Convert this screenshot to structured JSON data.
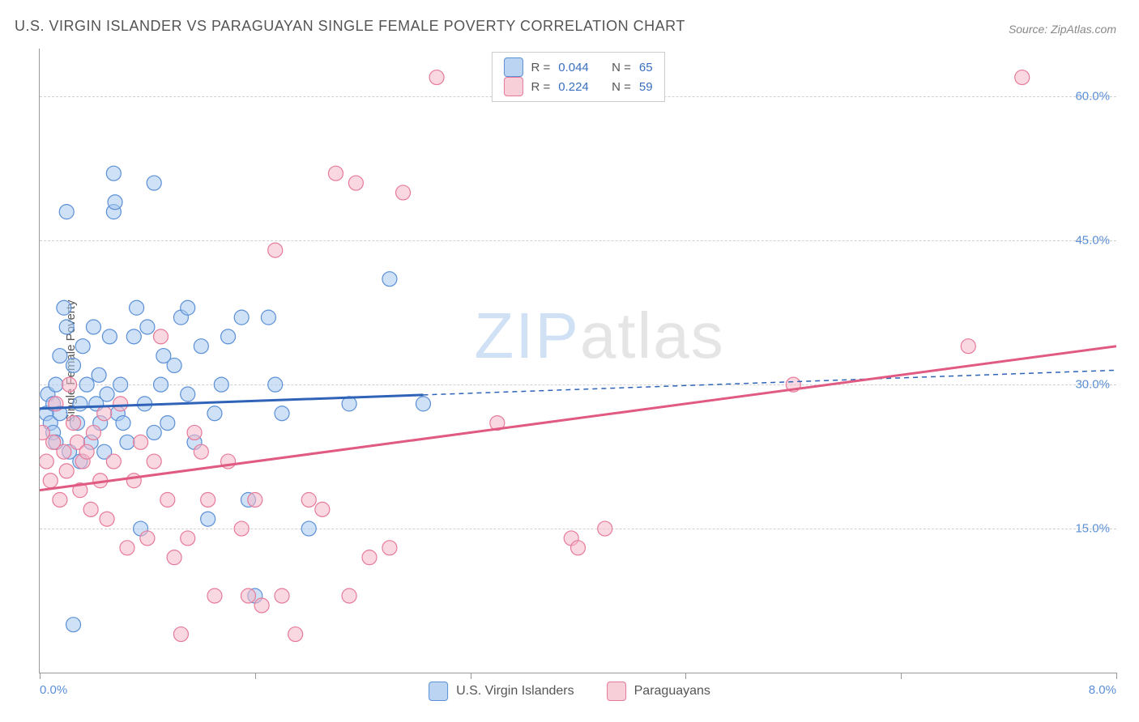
{
  "title": "U.S. VIRGIN ISLANDER VS PARAGUAYAN SINGLE FEMALE POVERTY CORRELATION CHART",
  "source": "Source: ZipAtlas.com",
  "ylabel": "Single Female Poverty",
  "watermark_a": "ZIP",
  "watermark_b": "atlas",
  "chart": {
    "type": "scatter-correlation",
    "background_color": "#ffffff",
    "grid_color": "#d0d0d0",
    "axis_color": "#999999",
    "xlim": [
      0,
      8
    ],
    "ylim": [
      0,
      65
    ],
    "xticks": [
      0,
      1.6,
      3.2,
      4.8,
      6.4,
      8.0
    ],
    "xtick_labels_shown": {
      "0": "0.0%",
      "8": "8.0%"
    },
    "yticks": [
      15,
      30,
      45,
      60
    ],
    "ytick_labels": {
      "15": "15.0%",
      "30": "30.0%",
      "45": "45.0%",
      "60": "60.0%"
    },
    "marker_radius": 9,
    "marker_opacity": 0.55,
    "series": [
      {
        "name": "U.S. Virgin Islanders",
        "color_fill": "#a6c8ee",
        "color_stroke": "#5b8fd6",
        "R": "0.044",
        "N": "65",
        "trend": {
          "x1": 0,
          "y1": 27.5,
          "x2": 8,
          "y2": 31.5,
          "solid_until_x": 2.85,
          "color": "#2e63b8",
          "width": 3
        },
        "points": [
          [
            0.05,
            27
          ],
          [
            0.06,
            29
          ],
          [
            0.08,
            26
          ],
          [
            0.1,
            25
          ],
          [
            0.1,
            28
          ],
          [
            0.12,
            30
          ],
          [
            0.12,
            24
          ],
          [
            0.15,
            33
          ],
          [
            0.15,
            27
          ],
          [
            0.18,
            38
          ],
          [
            0.2,
            36
          ],
          [
            0.2,
            48
          ],
          [
            0.22,
            23
          ],
          [
            0.25,
            5
          ],
          [
            0.25,
            32
          ],
          [
            0.28,
            26
          ],
          [
            0.3,
            28
          ],
          [
            0.3,
            22
          ],
          [
            0.32,
            34
          ],
          [
            0.35,
            30
          ],
          [
            0.38,
            24
          ],
          [
            0.4,
            36
          ],
          [
            0.42,
            28
          ],
          [
            0.44,
            31
          ],
          [
            0.45,
            26
          ],
          [
            0.48,
            23
          ],
          [
            0.5,
            29
          ],
          [
            0.52,
            35
          ],
          [
            0.55,
            52
          ],
          [
            0.55,
            48
          ],
          [
            0.56,
            49
          ],
          [
            0.58,
            27
          ],
          [
            0.6,
            30
          ],
          [
            0.62,
            26
          ],
          [
            0.65,
            24
          ],
          [
            0.7,
            35
          ],
          [
            0.72,
            38
          ],
          [
            0.75,
            15
          ],
          [
            0.78,
            28
          ],
          [
            0.8,
            36
          ],
          [
            0.85,
            51
          ],
          [
            0.85,
            25
          ],
          [
            0.9,
            30
          ],
          [
            0.92,
            33
          ],
          [
            0.95,
            26
          ],
          [
            1.0,
            32
          ],
          [
            1.05,
            37
          ],
          [
            1.1,
            38
          ],
          [
            1.1,
            29
          ],
          [
            1.15,
            24
          ],
          [
            1.2,
            34
          ],
          [
            1.25,
            16
          ],
          [
            1.3,
            27
          ],
          [
            1.35,
            30
          ],
          [
            1.4,
            35
          ],
          [
            1.5,
            37
          ],
          [
            1.55,
            18
          ],
          [
            1.6,
            8
          ],
          [
            1.7,
            37
          ],
          [
            1.75,
            30
          ],
          [
            1.8,
            27
          ],
          [
            2.0,
            15
          ],
          [
            2.3,
            28
          ],
          [
            2.6,
            41
          ],
          [
            2.85,
            28
          ]
        ]
      },
      {
        "name": "Paraguayans",
        "color_fill": "#f5b8c8",
        "color_stroke": "#e67a9a",
        "R": "0.224",
        "N": "59",
        "trend": {
          "x1": 0,
          "y1": 19,
          "x2": 8,
          "y2": 34,
          "solid_until_x": 8,
          "color": "#e05a82",
          "width": 3
        },
        "points": [
          [
            0.02,
            25
          ],
          [
            0.05,
            22
          ],
          [
            0.08,
            20
          ],
          [
            0.1,
            24
          ],
          [
            0.12,
            28
          ],
          [
            0.15,
            18
          ],
          [
            0.18,
            23
          ],
          [
            0.2,
            21
          ],
          [
            0.22,
            30
          ],
          [
            0.25,
            26
          ],
          [
            0.28,
            24
          ],
          [
            0.3,
            19
          ],
          [
            0.32,
            22
          ],
          [
            0.35,
            23
          ],
          [
            0.38,
            17
          ],
          [
            0.4,
            25
          ],
          [
            0.45,
            20
          ],
          [
            0.48,
            27
          ],
          [
            0.5,
            16
          ],
          [
            0.55,
            22
          ],
          [
            0.6,
            28
          ],
          [
            0.65,
            13
          ],
          [
            0.7,
            20
          ],
          [
            0.75,
            24
          ],
          [
            0.8,
            14
          ],
          [
            0.85,
            22
          ],
          [
            0.9,
            35
          ],
          [
            0.95,
            18
          ],
          [
            1.0,
            12
          ],
          [
            1.05,
            4
          ],
          [
            1.1,
            14
          ],
          [
            1.15,
            25
          ],
          [
            1.2,
            23
          ],
          [
            1.25,
            18
          ],
          [
            1.3,
            8
          ],
          [
            1.4,
            22
          ],
          [
            1.5,
            15
          ],
          [
            1.55,
            8
          ],
          [
            1.6,
            18
          ],
          [
            1.65,
            7
          ],
          [
            1.75,
            44
          ],
          [
            1.8,
            8
          ],
          [
            1.9,
            4
          ],
          [
            2.0,
            18
          ],
          [
            2.1,
            17
          ],
          [
            2.2,
            52
          ],
          [
            2.3,
            8
          ],
          [
            2.35,
            51
          ],
          [
            2.45,
            12
          ],
          [
            2.6,
            13
          ],
          [
            2.7,
            50
          ],
          [
            2.95,
            62
          ],
          [
            3.4,
            26
          ],
          [
            3.95,
            14
          ],
          [
            4.0,
            13
          ],
          [
            4.2,
            15
          ],
          [
            5.6,
            30
          ],
          [
            6.9,
            34
          ],
          [
            7.3,
            62
          ]
        ]
      }
    ]
  },
  "legend_top": {
    "r_label": "R =",
    "n_label": "N ="
  },
  "legend_bottom": {
    "items": [
      "U.S. Virgin Islanders",
      "Paraguayans"
    ]
  },
  "tick_label_color": "#5b8fd6",
  "text_color": "#555555",
  "fontsize_title": 18,
  "fontsize_axis": 15
}
